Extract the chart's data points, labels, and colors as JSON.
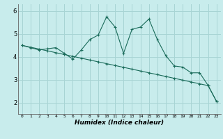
{
  "title": "",
  "xlabel": "Humidex (Indice chaleur)",
  "xlim": [
    -0.5,
    23.5
  ],
  "ylim": [
    1.5,
    6.3
  ],
  "yticks": [
    2,
    3,
    4,
    5,
    6
  ],
  "xticks": [
    0,
    1,
    2,
    3,
    4,
    5,
    6,
    7,
    8,
    9,
    10,
    11,
    12,
    13,
    14,
    15,
    16,
    17,
    18,
    19,
    20,
    21,
    22,
    23
  ],
  "bg_color": "#c8ecec",
  "grid_color": "#a8d4d4",
  "line_color": "#1a6b5a",
  "line1_x": [
    0,
    1,
    2,
    3,
    4,
    5,
    6,
    7,
    8,
    9,
    10,
    11,
    12,
    13,
    14,
    15,
    16,
    17,
    18,
    19,
    20,
    21,
    22,
    23
  ],
  "line1_y": [
    4.5,
    4.4,
    4.3,
    4.35,
    4.4,
    4.15,
    3.9,
    4.3,
    4.75,
    4.95,
    5.75,
    5.3,
    4.15,
    5.2,
    5.3,
    5.65,
    4.75,
    4.05,
    3.6,
    3.55,
    3.3,
    3.3,
    2.75,
    2.05
  ],
  "line2_x": [
    0,
    1,
    2,
    3,
    4,
    5,
    6,
    7,
    8,
    9,
    10,
    11,
    12,
    13,
    14,
    15,
    16,
    17,
    18,
    19,
    20,
    21,
    22,
    23
  ],
  "line2_y": [
    4.5,
    4.42,
    4.34,
    4.26,
    4.18,
    4.1,
    4.02,
    3.94,
    3.86,
    3.78,
    3.7,
    3.62,
    3.54,
    3.46,
    3.38,
    3.3,
    3.22,
    3.14,
    3.06,
    2.98,
    2.9,
    2.82,
    2.74,
    2.05
  ]
}
